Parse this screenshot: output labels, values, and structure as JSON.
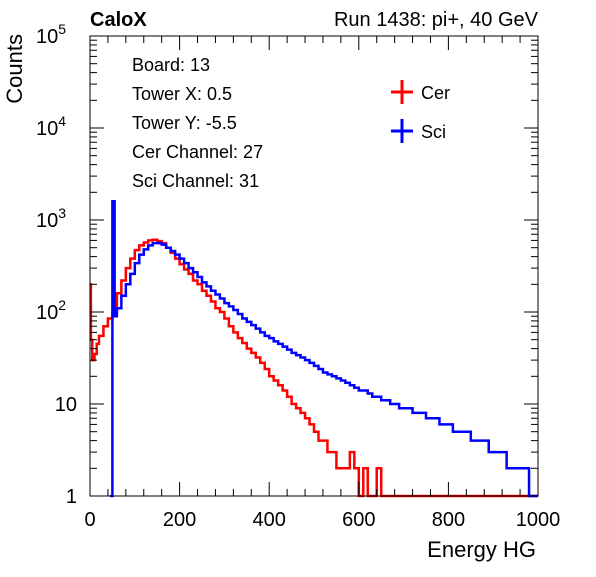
{
  "header": {
    "left_title": "CaloX",
    "right_title": "Run 1438: pi+, 40 GeV"
  },
  "info_box": [
    "Board: 13",
    "Tower X: 0.5",
    "Tower Y: -5.5",
    "Cer Channel: 27",
    "Sci Channel: 31"
  ],
  "chart_data": {
    "type": "line",
    "title": "",
    "xlabel": "Energy HG",
    "ylabel": "Counts",
    "xlim": [
      0,
      1000
    ],
    "ylim": [
      1,
      100000
    ],
    "y_scale": "log",
    "grid": false,
    "legend_position": "top-right",
    "x_ticks": [
      0,
      200,
      400,
      600,
      800,
      1000
    ],
    "y_ticks": [
      {
        "value": 1,
        "mantissa": "1",
        "exponent": ""
      },
      {
        "value": 10,
        "mantissa": "10",
        "exponent": ""
      },
      {
        "value": 100,
        "mantissa": "10",
        "exponent": "2"
      },
      {
        "value": 1000,
        "mantissa": "10",
        "exponent": "3"
      },
      {
        "value": 10000,
        "mantissa": "10",
        "exponent": "4"
      },
      {
        "value": 100000,
        "mantissa": "10",
        "exponent": "5"
      }
    ],
    "series": [
      {
        "name": "Cer",
        "color": "#ff0000",
        "x": [
          0,
          2,
          5,
          10,
          15,
          20,
          30,
          40,
          50,
          60,
          70,
          80,
          90,
          100,
          110,
          120,
          130,
          140,
          150,
          160,
          170,
          180,
          190,
          200,
          210,
          220,
          230,
          240,
          250,
          260,
          270,
          280,
          290,
          300,
          310,
          320,
          330,
          340,
          350,
          360,
          370,
          380,
          390,
          400,
          410,
          420,
          430,
          440,
          450,
          460,
          470,
          480,
          490,
          500,
          510,
          520,
          530,
          540,
          550,
          560,
          570,
          580,
          590,
          600,
          610,
          620,
          630,
          640,
          650,
          660,
          670,
          680,
          690,
          700,
          710,
          720,
          730,
          740,
          750,
          760,
          770,
          780,
          790,
          800,
          810,
          820,
          830,
          840,
          850,
          860,
          870,
          880,
          890,
          900,
          910,
          920,
          930,
          940,
          950,
          960,
          970,
          980,
          990
        ],
        "y": [
          200,
          50,
          30,
          35,
          45,
          55,
          70,
          85,
          100,
          160,
          220,
          300,
          380,
          470,
          530,
          570,
          600,
          610,
          590,
          560,
          500,
          440,
          380,
          330,
          290,
          260,
          220,
          200,
          170,
          150,
          130,
          110,
          100,
          85,
          70,
          60,
          52,
          46,
          40,
          36,
          32,
          28,
          24,
          20,
          18,
          16,
          14,
          12,
          10,
          9,
          8,
          7,
          6,
          5,
          4,
          4,
          3,
          3,
          2,
          2,
          2,
          3,
          2,
          1,
          2,
          1,
          1,
          2,
          1,
          1,
          1,
          1,
          1,
          1,
          1,
          1,
          1,
          1,
          1,
          1,
          1,
          1,
          1,
          1,
          1,
          1,
          1,
          1,
          1,
          1,
          1,
          1,
          1,
          1,
          1,
          1,
          1,
          1,
          1,
          1,
          1,
          1,
          1
        ]
      },
      {
        "name": "Sci",
        "color": "#0000ff",
        "x": [
          45,
          50,
          55,
          60,
          70,
          80,
          90,
          100,
          110,
          120,
          130,
          140,
          150,
          160,
          170,
          180,
          190,
          200,
          210,
          220,
          230,
          240,
          250,
          260,
          270,
          280,
          290,
          300,
          310,
          320,
          330,
          340,
          350,
          360,
          370,
          380,
          390,
          400,
          410,
          420,
          430,
          440,
          450,
          460,
          470,
          480,
          490,
          500,
          510,
          520,
          530,
          540,
          550,
          560,
          570,
          580,
          590,
          600,
          610,
          620,
          630,
          640,
          650,
          660,
          670,
          680,
          690,
          700,
          710,
          720,
          730,
          740,
          750,
          760,
          770,
          780,
          790,
          800,
          810,
          820,
          830,
          840,
          850,
          860,
          870,
          880,
          890,
          900,
          910,
          920,
          930,
          940,
          950,
          960,
          970,
          980,
          990
        ],
        "y": [
          1,
          1600,
          90,
          110,
          150,
          200,
          260,
          340,
          420,
          480,
          530,
          560,
          560,
          540,
          500,
          460,
          420,
          380,
          340,
          300,
          270,
          240,
          210,
          190,
          170,
          155,
          140,
          125,
          115,
          105,
          95,
          85,
          78,
          72,
          66,
          60,
          55,
          52,
          48,
          45,
          42,
          39,
          36,
          34,
          32,
          30,
          28,
          26,
          24,
          22,
          21,
          20,
          19,
          18,
          17,
          16,
          15,
          14,
          14,
          13,
          12,
          12,
          11,
          11,
          10,
          10,
          9,
          9,
          9,
          8,
          8,
          8,
          7,
          7,
          7,
          6,
          6,
          6,
          5,
          5,
          5,
          5,
          4,
          4,
          4,
          4,
          3,
          3,
          3,
          3,
          2,
          2,
          2,
          2,
          2,
          1,
          1
        ]
      }
    ]
  }
}
